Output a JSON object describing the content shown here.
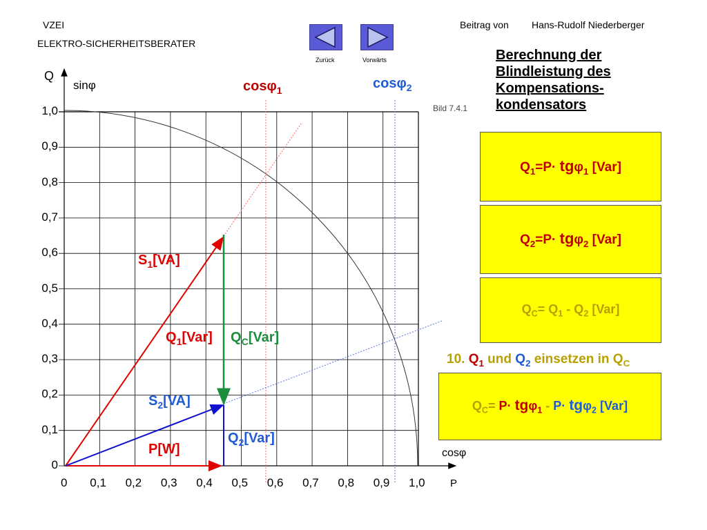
{
  "header": {
    "org": "VZEI",
    "subtitle": "ELEKTRO-SICHERHEITSBERATER",
    "author_prefix": "Beitrag von",
    "author": "Hans-Rudolf Niederberger",
    "nav_back": "Zurück",
    "nav_forward": "Vorwärts"
  },
  "title_lines": [
    "Berechnung der",
    "Blindleistung des",
    "Kompensations-",
    "kondensators"
  ],
  "figure_ref": "Bild 7.4.1",
  "axes": {
    "y_label": "Q",
    "y_sub_label": "sinφ",
    "x_label": "P",
    "x_sub_label": "cosφ",
    "ticks": [
      "0",
      "0,1",
      "0,2",
      "0,3",
      "0,4",
      "0,5",
      "0,6",
      "0,7",
      "0,8",
      "0,9",
      "1,0"
    ]
  },
  "diagram_labels": {
    "cos1": "cos",
    "cos1_sub": "1",
    "cos2": "cos",
    "cos2_sub": "2",
    "s1": "S",
    "s1_sub": "1",
    "s1_unit": "[VA]",
    "q1": "Q",
    "q1_sub": "1",
    "q1_unit": "[Var]",
    "qc": "Q",
    "qc_sub": "C",
    "qc_unit": "[Var]",
    "s2": "S",
    "s2_sub": "2",
    "s2_unit": "[VA]",
    "q2": "Q",
    "q2_sub": "2",
    "q2_unit": "[Var]",
    "p": "P[W]"
  },
  "vectors": {
    "p": 0.45,
    "q1": 0.65,
    "q2": 0.17,
    "cos_phi1": 0.57,
    "cos_phi2": 0.94
  },
  "formulas": {
    "f1": {
      "q": "Q",
      "sub": "1",
      "eq": "=P· ",
      "tg": "tg",
      "phi": "φ",
      "phisub": "1",
      "unit": " [Var]"
    },
    "f2": {
      "q": "Q",
      "sub": "2",
      "eq": "=P· ",
      "tg": "tg",
      "phi": "φ",
      "phisub": "2",
      "unit": " [Var]"
    },
    "f3": {
      "q": "Q",
      "sub": "C",
      "eq": "= ",
      "q1": "Q",
      "q1sub": "1",
      "minus": " - ",
      "q2": "Q",
      "q2sub": "2",
      "unit": "  [Var]"
    },
    "step": {
      "prefix": "10. ",
      "q1": "Q",
      "q1sub": "1",
      "mid": " und ",
      "q2": "Q",
      "q2sub": "2",
      "mid2": " einsetzen in ",
      "qc": "Q",
      "qcsub": "C"
    },
    "f4": {
      "q": "Q",
      "sub": "C",
      "eq": "= ",
      "p1": "P· ",
      "tg1": "tg",
      "phi1": "φ",
      "phi1sub": "1",
      "minus": " - ",
      "p2": "P· ",
      "tg2": "tg",
      "phi2": "φ",
      "phi2sub": "2",
      "unit": " [Var]"
    }
  },
  "colors": {
    "s1": "#e00000",
    "s2": "#1010d0",
    "qc": "#1a8f3c",
    "p": "#e00000",
    "box": "#ffff00"
  }
}
